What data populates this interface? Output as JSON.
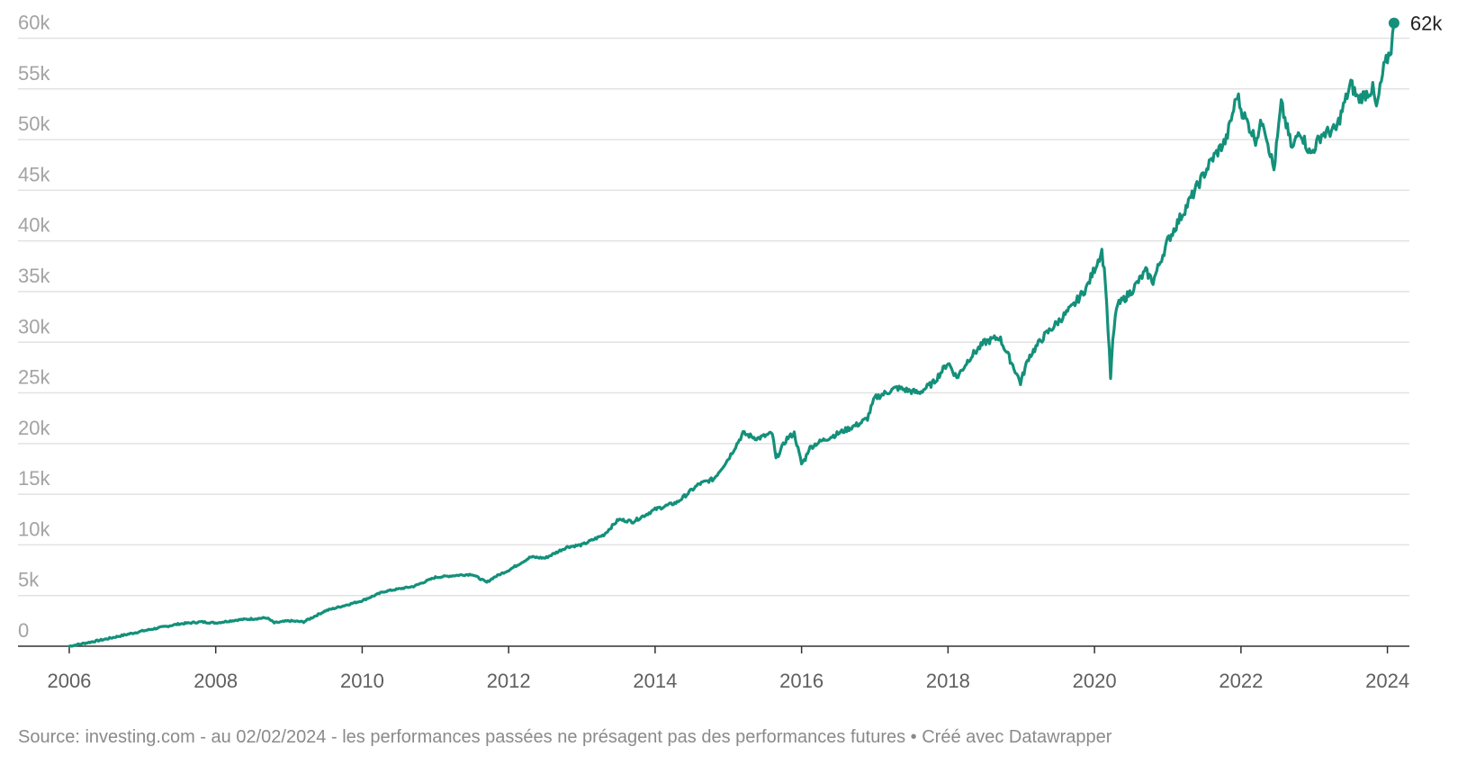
{
  "footer": {
    "source": "Source: investing.com - au 02/02/2024 - les performances passées ne présagent pas des performances futures • Créé avec Datawrapper"
  },
  "colors": {
    "line": "#13907a",
    "grid": "#e2e2e2",
    "axis": "#333333",
    "ytick_text": "#a3a3a3",
    "xtick_text": "#5f5f5f"
  },
  "chart_data": {
    "type": "line",
    "title": "",
    "xlabel": "",
    "ylabel": "",
    "xlim": [
      2005.3,
      2024.3
    ],
    "ylim": [
      0,
      62000
    ],
    "grid": true,
    "y_ticks": [
      0,
      5000,
      10000,
      15000,
      20000,
      25000,
      30000,
      35000,
      40000,
      45000,
      50000,
      55000,
      60000
    ],
    "y_tick_labels": [
      "0",
      "5k",
      "10k",
      "15k",
      "20k",
      "25k",
      "30k",
      "35k",
      "40k",
      "45k",
      "50k",
      "55k",
      "60k"
    ],
    "x_ticks": [
      2006,
      2008,
      2010,
      2012,
      2014,
      2016,
      2018,
      2020,
      2022,
      2024
    ],
    "x_tick_labels": [
      "2006",
      "2008",
      "2010",
      "2012",
      "2014",
      "2016",
      "2018",
      "2020",
      "2022",
      "2024"
    ],
    "end_label": "62k",
    "series": [
      {
        "x": [
          2006.0,
          2006.5,
          2007.0,
          2007.5,
          2007.8,
          2008.0,
          2008.3,
          2008.7,
          2008.8,
          2009.0,
          2009.2,
          2009.5,
          2010.0,
          2010.3,
          2010.7,
          2011.0,
          2011.3,
          2011.5,
          2011.7,
          2011.8,
          2012.0,
          2012.3,
          2012.5,
          2012.8,
          2013.0,
          2013.3,
          2013.5,
          2013.7,
          2014.0,
          2014.3,
          2014.6,
          2014.8,
          2015.0,
          2015.2,
          2015.4,
          2015.6,
          2015.65,
          2015.8,
          2015.9,
          2016.0,
          2016.05,
          2016.1,
          2016.2,
          2016.5,
          2016.8,
          2016.9,
          2017.0,
          2017.3,
          2017.6,
          2017.8,
          2018.0,
          2018.08,
          2018.12,
          2018.3,
          2018.5,
          2018.7,
          2018.9,
          2018.99,
          2019.1,
          2019.3,
          2019.5,
          2019.7,
          2019.9,
          2020.1,
          2020.15,
          2020.22,
          2020.25,
          2020.3,
          2020.5,
          2020.7,
          2020.8,
          2020.9,
          2021.0,
          2021.3,
          2021.6,
          2021.8,
          2021.95,
          2022.0,
          2022.2,
          2022.3,
          2022.45,
          2022.55,
          2022.7,
          2022.8,
          2022.95,
          2023.1,
          2023.3,
          2023.5,
          2023.6,
          2023.8,
          2023.85,
          2023.95,
          2024.05,
          2024.09
        ],
        "y": [
          0,
          700,
          1500,
          2200,
          2400,
          2300,
          2600,
          2800,
          2300,
          2500,
          2400,
          3500,
          4500,
          5400,
          5900,
          6800,
          7000,
          7100,
          6300,
          6800,
          7500,
          8800,
          8700,
          9800,
          10000,
          11000,
          12500,
          12300,
          13500,
          14200,
          16000,
          16500,
          18500,
          21000,
          20500,
          21000,
          18500,
          20500,
          21000,
          18000,
          18500,
          19500,
          20000,
          21000,
          22000,
          22500,
          24500,
          25500,
          25000,
          26000,
          28000,
          27000,
          26500,
          28500,
          30000,
          30500,
          27500,
          26000,
          28500,
          30500,
          32000,
          33500,
          35500,
          39000,
          36000,
          26500,
          30000,
          33500,
          35000,
          37000,
          36000,
          38000,
          40000,
          44000,
          48000,
          50000,
          54500,
          53000,
          50000,
          52000,
          47000,
          53500,
          49000,
          51000,
          48500,
          50500,
          51000,
          55500,
          54000,
          55000,
          53000,
          57000,
          59000,
          61500
        ]
      }
    ]
  }
}
